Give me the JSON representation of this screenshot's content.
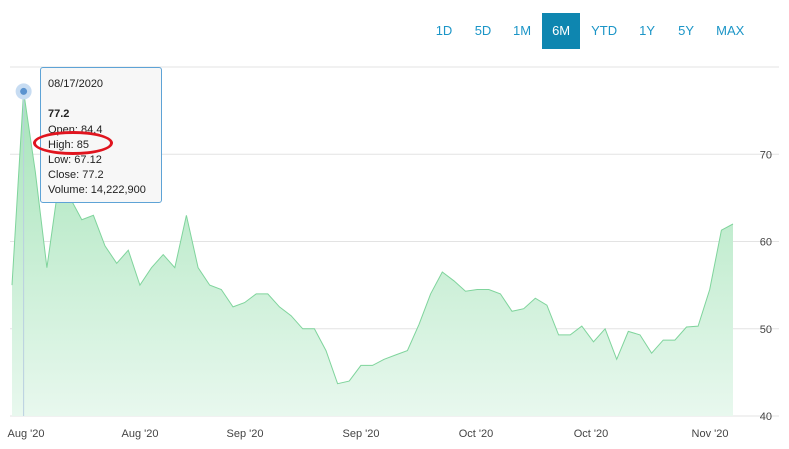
{
  "range_selector": {
    "options": [
      "1D",
      "5D",
      "1M",
      "6M",
      "YTD",
      "1Y",
      "5Y",
      "MAX"
    ],
    "selected": "6M"
  },
  "tooltip": {
    "date": "08/17/2020",
    "price": "77.2",
    "open": "Open: 84.4",
    "high": "High: 85",
    "low": "Low: 67.12",
    "close": "Close: 77.2",
    "volume": "Volume: 14,222,900"
  },
  "colors": {
    "area_fill_top": "#a6e4b9",
    "area_fill_bottom": "#e8f8ee",
    "area_stroke": "#7fd49c",
    "active_button": "#0e86b0",
    "button_text": "#1b95c7",
    "tooltip_border": "#5ea3d6",
    "highlight_circle": "#e0141e"
  },
  "chart_data": {
    "type": "area",
    "x_tick_labels": [
      "Aug '20",
      "Aug '20",
      "Sep '20",
      "Sep '20",
      "Oct '20",
      "Oct '20",
      "Nov '20"
    ],
    "y_tick_labels": [
      "40",
      "50",
      "60",
      "70"
    ],
    "ylim": [
      40,
      80
    ],
    "grid": "horizontal",
    "values": [
      55,
      77.2,
      68,
      57,
      66.5,
      65,
      62.5,
      63,
      59.5,
      57.5,
      59,
      55,
      57,
      58.5,
      57,
      63,
      57,
      55,
      54.5,
      52.5,
      53,
      54,
      54,
      52.5,
      51.5,
      50,
      50,
      47.5,
      43.7,
      44,
      45.8,
      45.8,
      46.5,
      47,
      47.5,
      50.5,
      54,
      56.5,
      55.5,
      54.3,
      54.5,
      54.5,
      54,
      52,
      52.3,
      53.5,
      52.7,
      49.3,
      49.3,
      50.3,
      48.5,
      50,
      46.5,
      49.7,
      49.3,
      47.2,
      48.7,
      48.7,
      50.2,
      50.3,
      54.5,
      61.3,
      62
    ]
  }
}
